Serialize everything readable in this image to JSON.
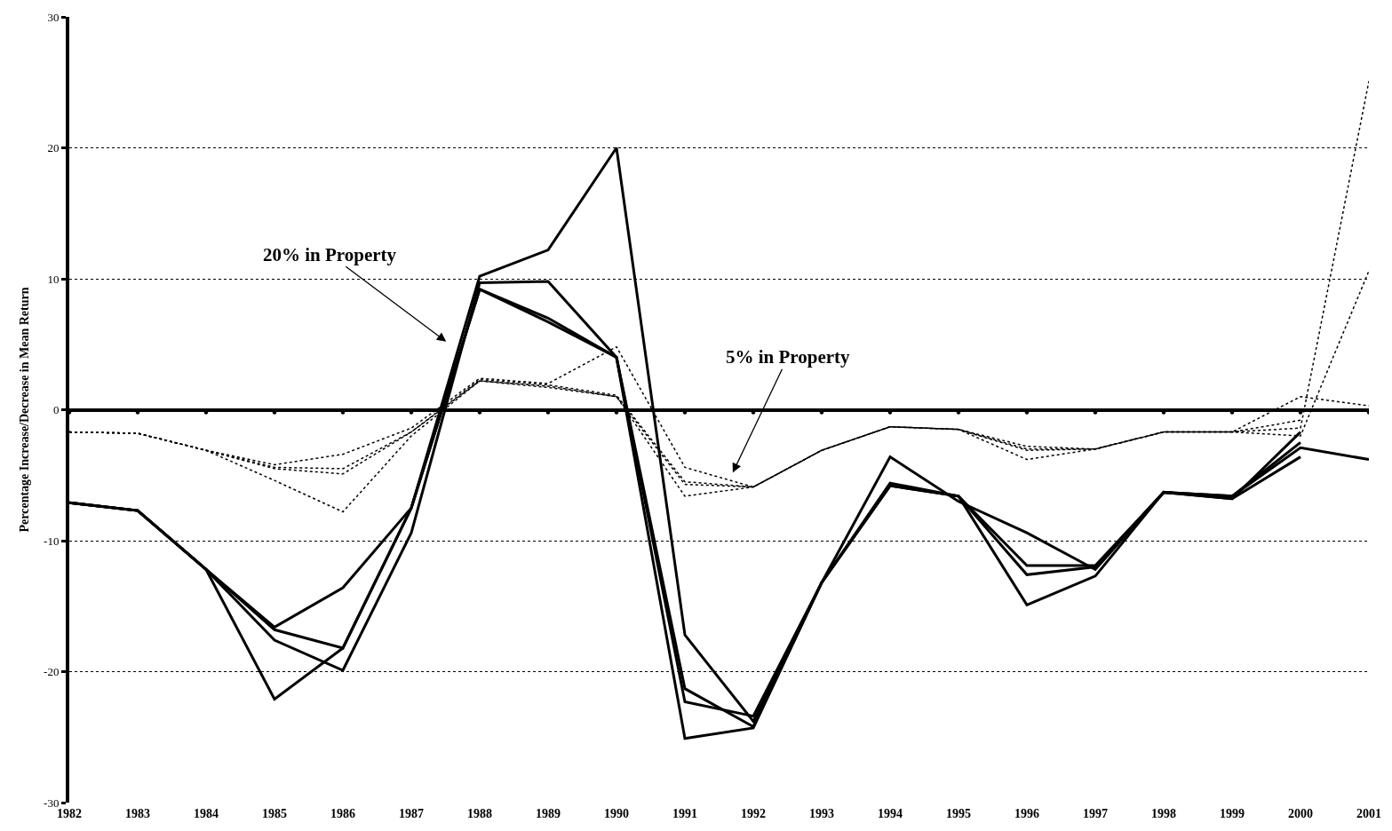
{
  "chart_data": {
    "type": "line",
    "ylabel": "Percentage Increase/Decrease in Mean Return",
    "annotations": [
      "20% in Property",
      "5% in Property"
    ],
    "categories": [
      "1982",
      "1983",
      "1984",
      "1985",
      "1986",
      "1987",
      "1988",
      "1989",
      "1990",
      "1991",
      "1992",
      "1993",
      "1994",
      "1995",
      "1996",
      "1997",
      "1998",
      "1999",
      "2000",
      "2001"
    ],
    "series": [
      {
        "color": "#000000",
        "line_style": "solid",
        "values": [
          -7.1,
          -7.7,
          -12.2,
          -16.8,
          -18.2,
          -7.5,
          9.2,
          6.7,
          4.0,
          -22.3,
          -23.4,
          -13.2,
          -5.8,
          -6.6,
          -11.9,
          -11.9,
          -6.3,
          -6.8,
          -1.7,
          null
        ]
      },
      {
        "color": "#000000",
        "line_style": "solid",
        "values": [
          -7.1,
          -7.7,
          -12.2,
          -16.6,
          -13.6,
          -7.5,
          10.2,
          12.2,
          20.0,
          -17.2,
          -23.8,
          -13.2,
          -3.6,
          -7.0,
          -9.4,
          -12.2,
          -6.3,
          -6.6,
          -2.9,
          -3.8
        ]
      },
      {
        "color": "#000000",
        "line_style": "solid",
        "values": [
          -7.1,
          -7.7,
          -12.2,
          -17.6,
          -19.9,
          -9.4,
          9.7,
          9.8,
          4.0,
          -21.3,
          -24.2,
          -13.2,
          -5.6,
          -6.6,
          -12.6,
          -12.0,
          -6.3,
          -6.6,
          -2.5,
          null
        ]
      },
      {
        "color": "#000000",
        "line_style": "solid",
        "values": [
          -7.1,
          -7.7,
          -12.2,
          -22.1,
          -18.2,
          -7.5,
          9.2,
          7.0,
          4.0,
          -25.1,
          -24.3,
          -13.2,
          -5.8,
          -6.6,
          -14.9,
          -12.7,
          -6.3,
          -6.8,
          -3.6,
          null
        ]
      },
      {
        "color": "#000000",
        "line_style": "dotted",
        "values": [
          -1.7,
          -1.8,
          -3.1,
          -4.2,
          -3.4,
          -1.4,
          2.4,
          2.0,
          4.8,
          -4.4,
          -5.9,
          -3.1,
          -1.3,
          -1.5,
          -2.8,
          -3.0,
          -1.7,
          -1.7,
          1.0,
          0.3
        ]
      },
      {
        "color": "#000000",
        "line_style": "dotted",
        "values": [
          -1.7,
          -1.8,
          -3.1,
          -4.4,
          -4.5,
          -1.7,
          2.3,
          1.9,
          1.1,
          -5.5,
          -5.9,
          -3.1,
          -1.3,
          -1.5,
          -3.0,
          -3.0,
          -1.7,
          -1.7,
          -0.8,
          null
        ]
      },
      {
        "color": "#000000",
        "line_style": "dotted",
        "values": [
          -1.7,
          -1.8,
          -3.1,
          -4.5,
          -4.9,
          -1.7,
          2.2,
          1.8,
          1.0,
          -5.7,
          -5.9,
          -3.1,
          -1.3,
          -1.5,
          -3.1,
          -3.0,
          -1.7,
          -1.7,
          -1.4,
          25.1
        ]
      },
      {
        "color": "#000000",
        "line_style": "dotted",
        "values": [
          -1.7,
          -1.8,
          -3.1,
          -5.4,
          -7.8,
          -2.0,
          2.2,
          1.7,
          1.0,
          -6.6,
          -5.9,
          -3.1,
          -1.3,
          -1.5,
          -3.8,
          -3.0,
          -1.7,
          -1.7,
          -2.0,
          10.6
        ]
      }
    ],
    "ylim": [
      -30,
      30
    ],
    "yticks": [
      -30,
      -20,
      -10,
      0,
      10,
      20,
      30
    ],
    "grid": "y",
    "marker": "none"
  }
}
